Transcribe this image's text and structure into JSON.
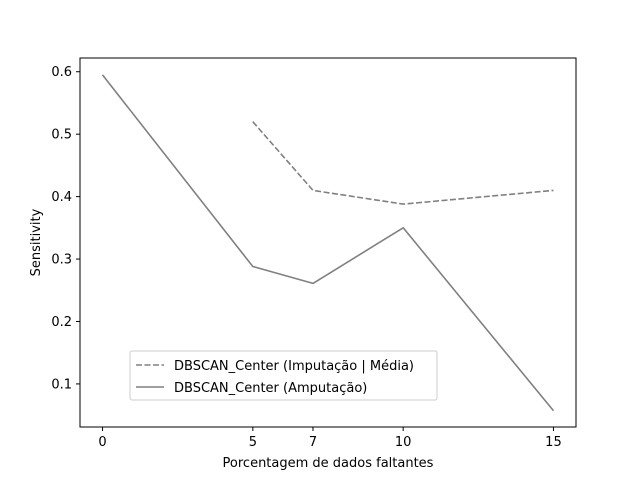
{
  "chart_data": {
    "type": "line",
    "title": "",
    "xlabel": "Porcentagem de dados faltantes",
    "ylabel": "Sensitivity",
    "x_ticks": [
      0,
      5,
      7,
      10,
      15
    ],
    "y_ticks": [
      0.1,
      0.2,
      0.3,
      0.4,
      0.5,
      0.6
    ],
    "xlim": [
      -0.75,
      15.75
    ],
    "ylim": [
      0.031,
      0.622
    ],
    "grid": false,
    "legend_position": "lower-left",
    "series": [
      {
        "name": "DBSCAN_Center (Imputação | Média)",
        "style": "dashed",
        "color": "#808080",
        "x": [
          5,
          7,
          10,
          15
        ],
        "y": [
          0.52,
          0.41,
          0.388,
          0.41
        ]
      },
      {
        "name": "DBSCAN_Center (Amputação)",
        "style": "solid",
        "color": "#808080",
        "x": [
          0,
          5,
          7,
          10,
          15
        ],
        "y": [
          0.595,
          0.288,
          0.261,
          0.35,
          0.057
        ]
      }
    ]
  }
}
